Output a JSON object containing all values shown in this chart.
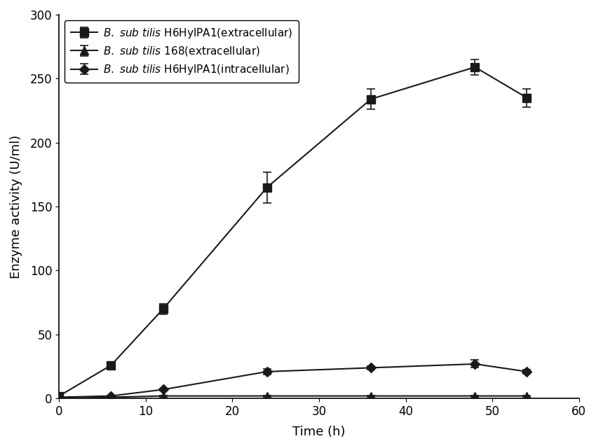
{
  "series1": {
    "x": [
      0,
      6,
      12,
      24,
      36,
      48,
      54
    ],
    "y": [
      2,
      26,
      70,
      165,
      234,
      259,
      235
    ],
    "yerr": [
      0,
      2,
      4,
      12,
      8,
      6,
      7
    ],
    "marker": "s",
    "color": "#1a1a1a",
    "linestyle": "-",
    "markersize": 8,
    "label": "$\\it{B.}$ $\\it{sub}$ $\\it{tilis}$ H6HylPA1(extracellular)"
  },
  "series2": {
    "x": [
      0,
      6,
      12,
      24,
      36,
      48,
      54
    ],
    "y": [
      0,
      1,
      2,
      2,
      2,
      2,
      2
    ],
    "yerr": [
      0,
      0.5,
      0.5,
      0.5,
      0.5,
      0.5,
      0.5
    ],
    "marker": "^",
    "color": "#1a1a1a",
    "linestyle": "-",
    "markersize": 8,
    "label": "$\\it{B.}$ $\\it{sub}$ $\\it{tilis}$ 168(extracellular)"
  },
  "series3": {
    "x": [
      0,
      6,
      12,
      24,
      36,
      48,
      54
    ],
    "y": [
      1,
      2,
      7,
      21,
      24,
      27,
      21
    ],
    "yerr": [
      0,
      0.5,
      1,
      2,
      1.5,
      3,
      1.5
    ],
    "marker": "D",
    "color": "#1a1a1a",
    "linestyle": "-",
    "markersize": 7,
    "label": "$\\it{B.}$ $\\it{sub}$ $\\it{tilis}$ H6HylPA1(intracellular)"
  },
  "xlabel": "Time (h)",
  "ylabel": "Enzyme activity (U/ml)",
  "xlim": [
    0,
    60
  ],
  "ylim": [
    0,
    300
  ],
  "xticks": [
    0,
    10,
    20,
    30,
    40,
    50,
    60
  ],
  "yticks": [
    0,
    50,
    100,
    150,
    200,
    250,
    300
  ],
  "background_color": "#ffffff",
  "font_size": 13,
  "tick_font_size": 12,
  "legend_fontsize": 11
}
